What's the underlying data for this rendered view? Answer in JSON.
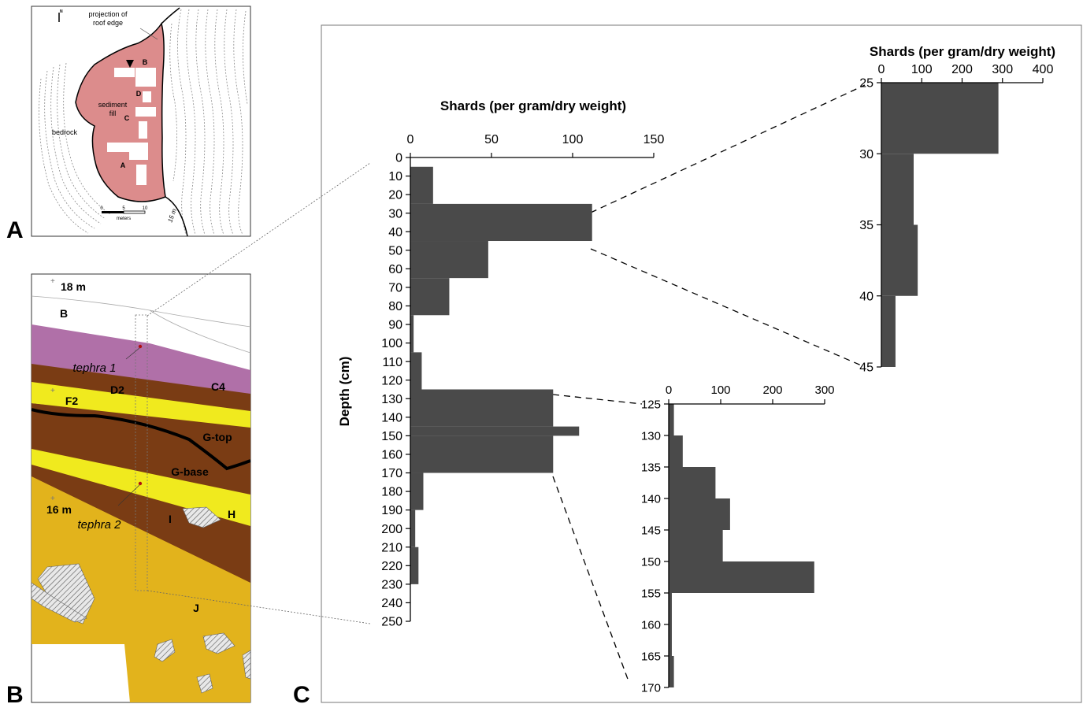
{
  "panels": {
    "a": {
      "letter": "A",
      "north_label": "N",
      "roof_label_line1": "projection of",
      "roof_label_line2": "roof edge",
      "bedrock_label": "bedrock",
      "fill_label_line1": "sediment",
      "fill_label_line2": "fill",
      "excavation_labels": [
        "B",
        "D",
        "C",
        "A"
      ],
      "scale_ticks": [
        "0",
        "5",
        "10"
      ],
      "scale_unit": "meters",
      "contour_label": "15 m"
    },
    "b": {
      "letter": "B",
      "elevation_top": "18 m",
      "elevation_bottom": "16 m",
      "units": [
        "B",
        "C4",
        "D2",
        "F2",
        "G-top",
        "G-base",
        "H",
        "I",
        "J"
      ],
      "tephra_1": "tephra 1",
      "tephra_2": "tephra 2"
    },
    "c": {
      "letter": "C"
    }
  },
  "colors": {
    "bar": "#4a4a4a",
    "pink_fill": "#dc8c8c",
    "magenta_unit": "#b070a8",
    "brown_unit": "#7a3c14",
    "yellow_unit": "#f0ea1e",
    "gold_unit": "#e2b31c"
  },
  "chart_data": [
    {
      "type": "bar",
      "orientation": "horizontal",
      "xlabel": "Shards (per gram/dry weight)",
      "ylabel": "Depth (cm)",
      "xlim": [
        0,
        150
      ],
      "x_ticks": [
        "0",
        "50",
        "100",
        "150"
      ],
      "y_ticks": [
        "0",
        "10",
        "20",
        "30",
        "40",
        "50",
        "60",
        "70",
        "80",
        "90",
        "100",
        "110",
        "120",
        "130",
        "140",
        "150",
        "160",
        "170",
        "180",
        "190",
        "200",
        "210",
        "220",
        "230",
        "240",
        "250"
      ],
      "ylim": [
        0,
        250
      ],
      "bins": [
        {
          "from": 5,
          "to": 25,
          "value": 14
        },
        {
          "from": 25,
          "to": 45,
          "value": 112
        },
        {
          "from": 45,
          "to": 65,
          "value": 48
        },
        {
          "from": 65,
          "to": 85,
          "value": 24
        },
        {
          "from": 85,
          "to": 105,
          "value": 2
        },
        {
          "from": 105,
          "to": 125,
          "value": 7
        },
        {
          "from": 125,
          "to": 145,
          "value": 88
        },
        {
          "from": 145,
          "to": 150,
          "value": 104
        },
        {
          "from": 150,
          "to": 170,
          "value": 88
        },
        {
          "from": 170,
          "to": 190,
          "value": 8
        },
        {
          "from": 190,
          "to": 210,
          "value": 3
        },
        {
          "from": 210,
          "to": 230,
          "value": 5
        }
      ]
    },
    {
      "type": "bar",
      "orientation": "horizontal",
      "xlabel": "Shards (per gram/dry weight)",
      "ylabel": "",
      "xlim": [
        0,
        400
      ],
      "x_ticks": [
        "0",
        "100",
        "200",
        "300",
        "400"
      ],
      "y_ticks": [
        "25",
        "30",
        "35",
        "40",
        "45"
      ],
      "ylim": [
        25,
        45
      ],
      "bins": [
        {
          "from": 25,
          "to": 30,
          "value": 290
        },
        {
          "from": 30,
          "to": 35,
          "value": 80
        },
        {
          "from": 35,
          "to": 40,
          "value": 90
        },
        {
          "from": 40,
          "to": 45,
          "value": 35
        }
      ]
    },
    {
      "type": "bar",
      "orientation": "horizontal",
      "xlabel": "",
      "ylabel": "",
      "xlim": [
        0,
        300
      ],
      "x_ticks": [
        "0",
        "100",
        "200",
        "300"
      ],
      "y_ticks": [
        "125",
        "130",
        "135",
        "140",
        "145",
        "150",
        "155",
        "160",
        "165",
        "170"
      ],
      "ylim": [
        125,
        170
      ],
      "bins": [
        {
          "from": 125,
          "to": 130,
          "value": 10
        },
        {
          "from": 130,
          "to": 135,
          "value": 27
        },
        {
          "from": 135,
          "to": 140,
          "value": 90
        },
        {
          "from": 140,
          "to": 145,
          "value": 118
        },
        {
          "from": 145,
          "to": 150,
          "value": 104
        },
        {
          "from": 150,
          "to": 155,
          "value": 280
        },
        {
          "from": 155,
          "to": 160,
          "value": 6
        },
        {
          "from": 160,
          "to": 165,
          "value": 6
        },
        {
          "from": 165,
          "to": 170,
          "value": 10
        }
      ]
    }
  ]
}
